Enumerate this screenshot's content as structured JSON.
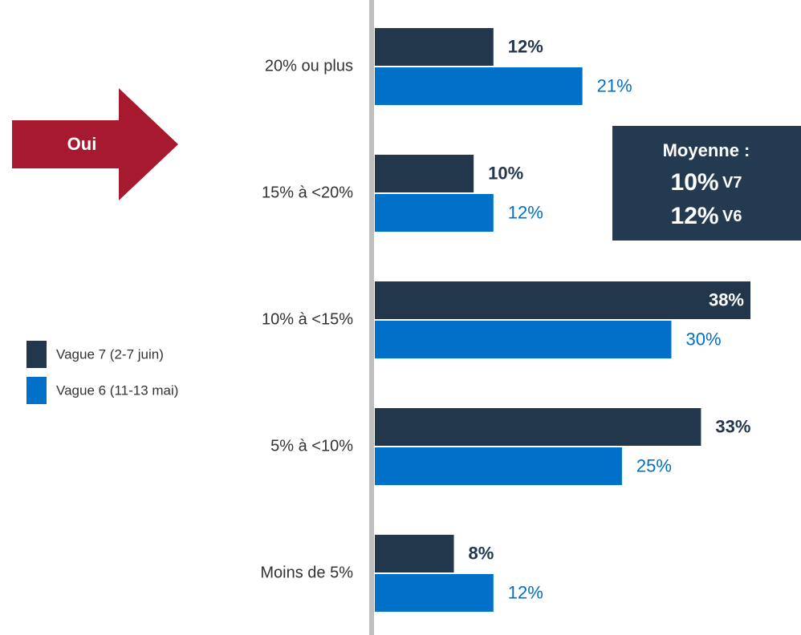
{
  "chart_data": {
    "type": "bar",
    "orientation": "horizontal",
    "categories": [
      "20% ou plus",
      "15% à <20%",
      "10% à <15%",
      "5% à <10%",
      "Moins de 5%"
    ],
    "series": [
      {
        "name": "Vague 7 (2-7 juin)",
        "color": "#22364c",
        "values": [
          12,
          10,
          38,
          33,
          8
        ],
        "value_labels": [
          "12%",
          "10%",
          "38%",
          "33%",
          "8%"
        ]
      },
      {
        "name": "Vague 6 (11-13 mai)",
        "color": "#0070c9",
        "values": [
          21,
          12,
          30,
          25,
          12
        ],
        "value_labels": [
          "21%",
          "12%",
          "30%",
          "25%",
          "12%"
        ]
      }
    ],
    "legend": "left",
    "annotations": {
      "arrow": "Oui",
      "box": {
        "title": "Moyenne :",
        "lines": [
          {
            "value": "10%",
            "label": "V7"
          },
          {
            "value": "12%",
            "label": "V6"
          }
        ]
      }
    }
  }
}
